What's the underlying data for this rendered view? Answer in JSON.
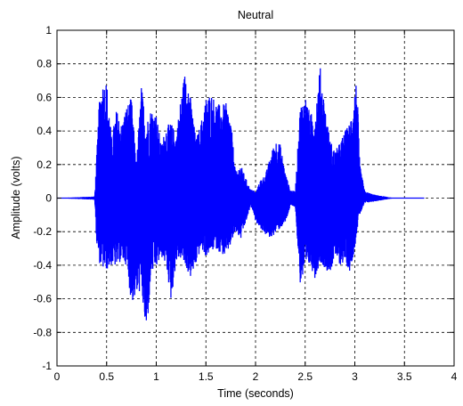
{
  "chart_data": {
    "type": "line",
    "title": "Neutral",
    "xlabel": "Time (seconds)",
    "ylabel": "Amplitude (volts)",
    "xlim": [
      0,
      4
    ],
    "ylim": [
      -1,
      1
    ],
    "x_ticks": [
      0,
      0.5,
      1,
      1.5,
      2,
      2.5,
      3,
      3.5,
      4
    ],
    "x_tick_labels": [
      "0",
      "0.5",
      "1",
      "1.5",
      "2",
      "2.5",
      "3",
      "3.5",
      "4"
    ],
    "y_ticks": [
      -1,
      -0.8,
      -0.6,
      -0.4,
      -0.2,
      0,
      0.2,
      0.4,
      0.6,
      0.8,
      1
    ],
    "y_tick_labels": [
      "-1",
      "-0.8",
      "-0.6",
      "-0.4",
      "-0.2",
      "0",
      "0.2",
      "0.4",
      "0.6",
      "0.8",
      "1"
    ],
    "grid": true,
    "grid_style": "dashed",
    "line_color": "#0000ff",
    "series": [
      {
        "envelope": {
          "x": [
            0.0,
            0.38,
            0.4,
            0.43,
            0.46,
            0.5,
            0.55,
            0.6,
            0.65,
            0.7,
            0.75,
            0.8,
            0.85,
            0.9,
            0.95,
            1.0,
            1.05,
            1.1,
            1.15,
            1.2,
            1.25,
            1.3,
            1.35,
            1.4,
            1.45,
            1.5,
            1.55,
            1.6,
            1.65,
            1.7,
            1.75,
            1.8,
            1.85,
            1.9,
            1.95,
            1.98,
            2.0,
            2.05,
            2.1,
            2.15,
            2.2,
            2.25,
            2.3,
            2.35,
            2.4,
            2.45,
            2.5,
            2.55,
            2.6,
            2.65,
            2.7,
            2.75,
            2.8,
            2.85,
            2.9,
            2.95,
            3.0,
            3.02,
            3.05,
            3.1,
            3.2,
            3.3,
            3.4,
            3.5,
            3.6,
            3.7
          ],
          "max": [
            0.0,
            0.01,
            0.26,
            0.62,
            0.69,
            0.7,
            0.36,
            0.53,
            0.44,
            0.55,
            0.6,
            0.2,
            0.67,
            0.45,
            0.54,
            0.5,
            0.32,
            0.43,
            0.45,
            0.38,
            0.61,
            0.8,
            0.58,
            0.35,
            0.45,
            0.6,
            0.63,
            0.58,
            0.55,
            0.57,
            0.47,
            0.15,
            0.2,
            0.12,
            0.05,
            0.05,
            0.03,
            0.11,
            0.14,
            0.25,
            0.35,
            0.32,
            0.15,
            0.05,
            0.04,
            0.55,
            0.62,
            0.5,
            0.52,
            0.79,
            0.55,
            0.35,
            0.28,
            0.33,
            0.4,
            0.45,
            0.65,
            0.72,
            0.2,
            0.04,
            0.02,
            0.01,
            0.0,
            0.0,
            0.0,
            0.0
          ],
          "min": [
            0.0,
            -0.01,
            -0.28,
            -0.39,
            -0.42,
            -0.43,
            -0.4,
            -0.41,
            -0.37,
            -0.4,
            -0.63,
            -0.58,
            -0.55,
            -0.84,
            -0.45,
            -0.42,
            -0.35,
            -0.4,
            -0.62,
            -0.38,
            -0.36,
            -0.42,
            -0.48,
            -0.4,
            -0.3,
            -0.35,
            -0.32,
            -0.3,
            -0.33,
            -0.35,
            -0.28,
            -0.2,
            -0.25,
            -0.15,
            -0.05,
            -0.08,
            -0.14,
            -0.18,
            -0.22,
            -0.24,
            -0.21,
            -0.18,
            -0.15,
            -0.05,
            -0.05,
            -0.51,
            -0.45,
            -0.4,
            -0.48,
            -0.38,
            -0.42,
            -0.45,
            -0.35,
            -0.4,
            -0.38,
            -0.44,
            -0.3,
            -0.2,
            -0.1,
            -0.03,
            -0.02,
            -0.01,
            0.0,
            0.0,
            0.0,
            0.0
          ]
        }
      }
    ]
  }
}
